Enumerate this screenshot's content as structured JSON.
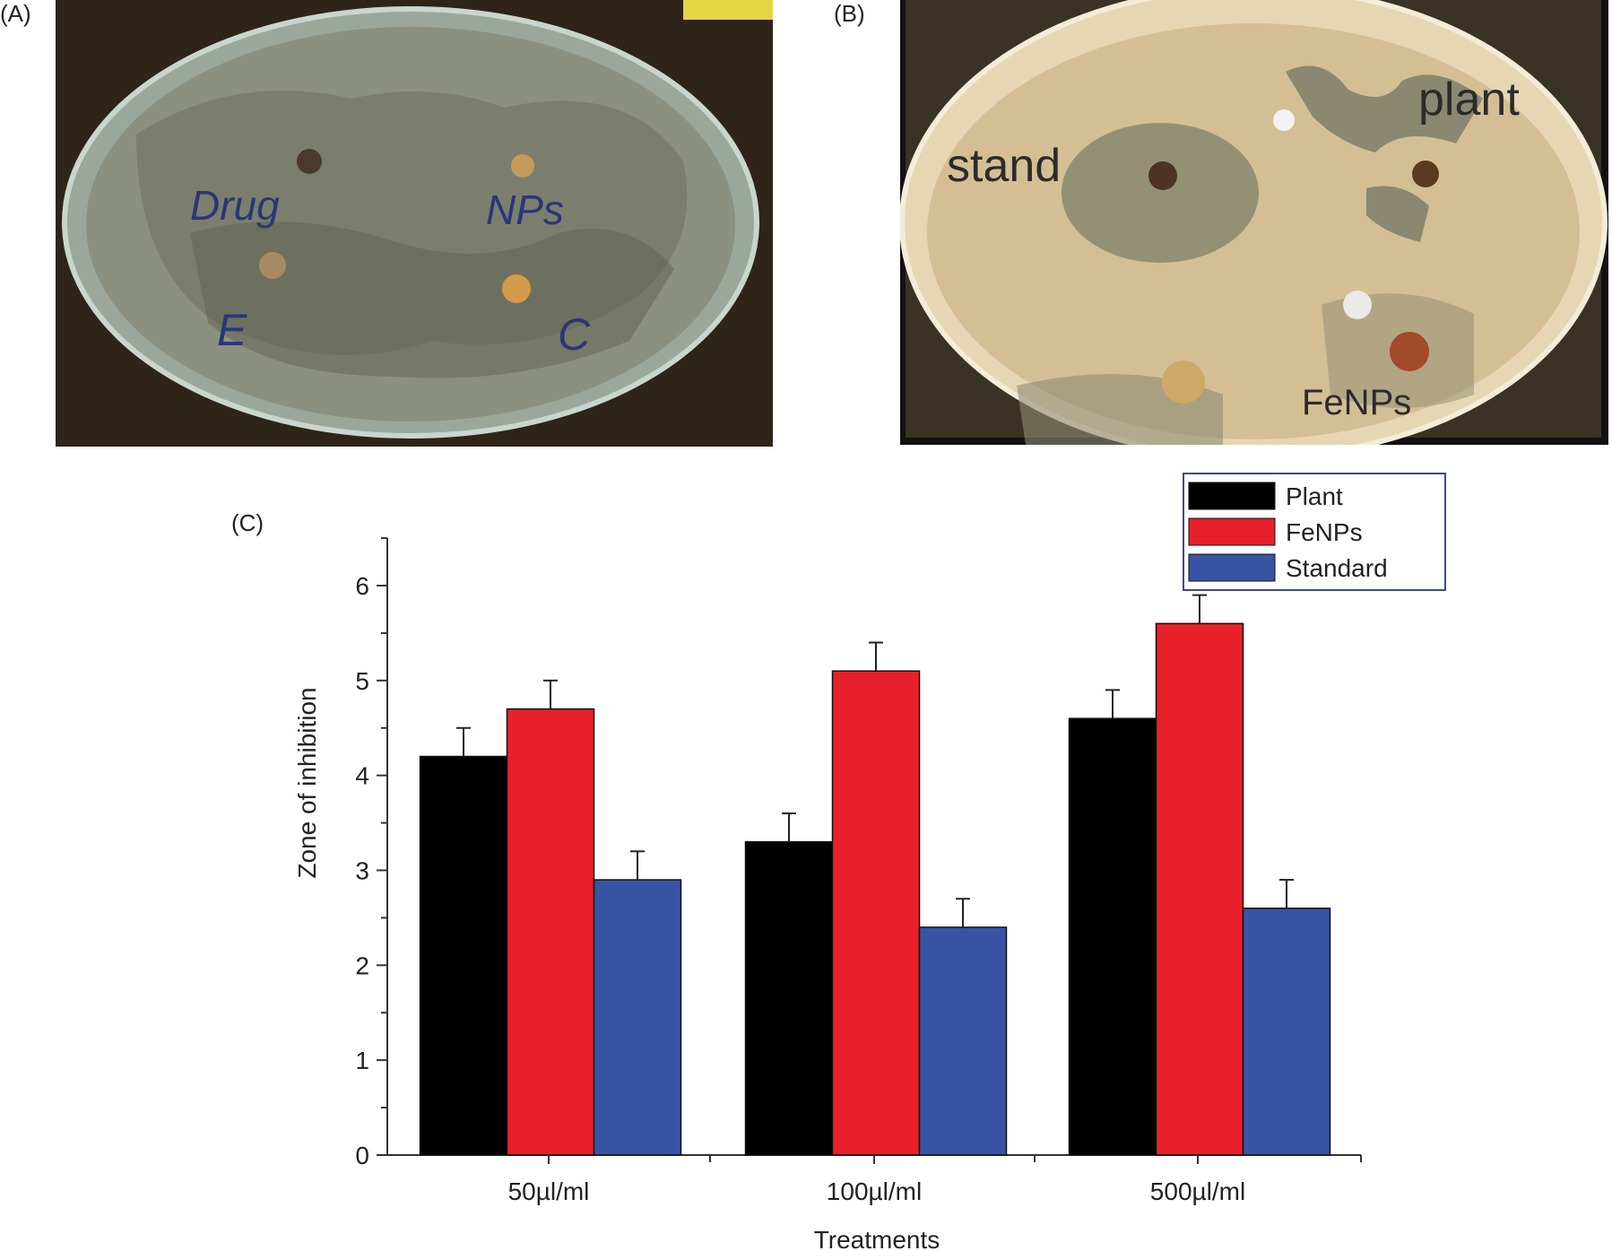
{
  "panels": {
    "a": {
      "label": "(A)",
      "plate_labels": [
        "Drug",
        "NPs",
        "E",
        "C"
      ]
    },
    "b": {
      "label": "(B)",
      "plate_labels": [
        "stand",
        "plant",
        "FeNPs"
      ]
    },
    "c": {
      "label": "(C)"
    }
  },
  "colors": {
    "plant": "#000000",
    "fenps": "#e8202a",
    "standard": "#3953a4",
    "agar_a": "#8a8f7e",
    "agar_b": "#d8c5a0"
  },
  "chart_data": {
    "type": "bar",
    "categories": [
      "50µl/ml",
      "100µl/ml",
      "500µl/ml"
    ],
    "series": [
      {
        "name": "Plant",
        "color": "#000000",
        "values": [
          4.2,
          3.3,
          4.6
        ],
        "errors": [
          0.3,
          0.3,
          0.3
        ]
      },
      {
        "name": "FeNPs",
        "color": "#e8202a",
        "values": [
          4.7,
          5.1,
          5.6
        ],
        "errors": [
          0.3,
          0.3,
          0.3
        ]
      },
      {
        "name": "Standard",
        "color": "#3953a4",
        "values": [
          2.9,
          2.4,
          2.6
        ],
        "errors": [
          0.3,
          0.3,
          0.3
        ]
      }
    ],
    "xlabel": "Treatments",
    "ylabel": "Zone of inhibition",
    "ylim": [
      0,
      6.5
    ],
    "yticks": [
      0,
      1,
      2,
      3,
      4,
      5,
      6
    ],
    "grid": false,
    "legend": "top-right"
  }
}
